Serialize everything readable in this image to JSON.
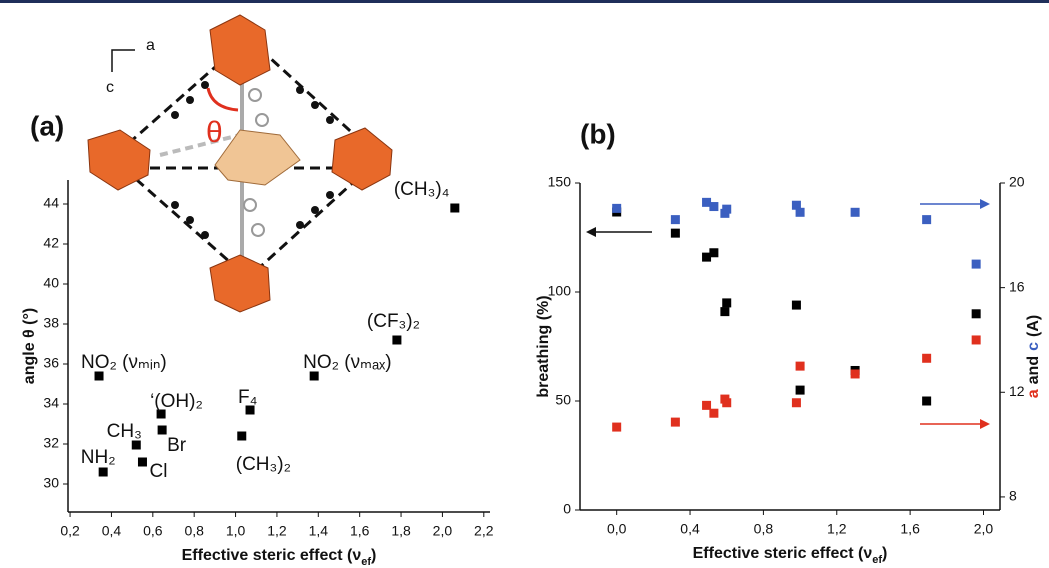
{
  "chart_data": [
    {
      "type": "scatter",
      "panel_label": "(a)",
      "structure_labels": {
        "a": "a",
        "c": "c",
        "theta": "θ"
      },
      "xlabel_parts": [
        "Effective steric effect (ν",
        "ef",
        ")"
      ],
      "ylabel": "angle θ (°)",
      "x": [
        0.36,
        0.52,
        0.55,
        0.645,
        0.64,
        0.34,
        1.03,
        1.07,
        1.38,
        1.78,
        2.06
      ],
      "values": [
        30.6,
        31.95,
        31.1,
        32.7,
        33.5,
        35.4,
        32.4,
        33.7,
        35.4,
        37.2,
        43.8
      ],
      "point_labels": [
        "NH₂",
        "CH₃",
        "Cl",
        "Br",
        "‘(OH)₂",
        "NO₂ (νₘᵢₙ)",
        "(CH₃)₂",
        "F₄",
        "NO₂ (νₘₐₓ)",
        "(CF₃)₂",
        "(CH₃)₄"
      ],
      "color": "#000000",
      "xlim": [
        0.19,
        2.23
      ],
      "ylim": [
        28.6,
        45.2
      ],
      "xticks": [
        {
          "value": 0.2,
          "label": "0,2"
        },
        {
          "value": 0.4,
          "label": "0,4"
        },
        {
          "value": 0.6,
          "label": "0,6"
        },
        {
          "value": 0.8,
          "label": "0,8"
        },
        {
          "value": 1.0,
          "label": "1,0"
        },
        {
          "value": 1.2,
          "label": "1,2"
        },
        {
          "value": 1.4,
          "label": "1,4"
        },
        {
          "value": 1.6,
          "label": "1,6"
        },
        {
          "value": 1.8,
          "label": "1,8"
        },
        {
          "value": 2.0,
          "label": "2,0"
        },
        {
          "value": 2.2,
          "label": "2,2"
        }
      ],
      "yticks": [
        30,
        32,
        34,
        36,
        38,
        40,
        42,
        44
      ]
    },
    {
      "type": "scatter",
      "panel_label": "(b)",
      "xlabel_parts": [
        "Effective steric effect (ν",
        "ef",
        ")"
      ],
      "ylabel": "breathing (%)",
      "y2label_parts": [
        "a",
        "and",
        "c",
        "(A)"
      ],
      "x": [
        0.0,
        0.32,
        0.49,
        0.53,
        0.59,
        0.6,
        0.98,
        1.0,
        1.3,
        1.69,
        1.96
      ],
      "series": [
        {
          "color": "#000000",
          "values": [
            136.7,
            127,
            116,
            118,
            91,
            95,
            94,
            55,
            64,
            50,
            90
          ]
        },
        {
          "color": "#3b5fc0",
          "axis": "y2",
          "values": [
            19.03,
            18.6,
            19.26,
            19.1,
            18.84,
            19.0,
            19.15,
            18.88,
            18.88,
            18.6,
            16.9
          ]
        },
        {
          "color": "#e0301e",
          "axis": "y2",
          "values": [
            10.67,
            10.86,
            11.5,
            11.2,
            11.74,
            11.6,
            11.6,
            13.0,
            12.7,
            13.3,
            14.0
          ]
        }
      ],
      "xlim": [
        -0.2,
        2.09
      ],
      "ylim": [
        0,
        150
      ],
      "y2lim": [
        7.5,
        20
      ],
      "xticks": [
        {
          "value": 0.0,
          "label": "0,0"
        },
        {
          "value": 0.4,
          "label": "0,4"
        },
        {
          "value": 0.8,
          "label": "0,8"
        },
        {
          "value": 1.2,
          "label": "1,2"
        },
        {
          "value": 1.6,
          "label": "1,6"
        },
        {
          "value": 2.0,
          "label": "2,0"
        }
      ],
      "yticks": [
        0,
        50,
        100,
        150
      ],
      "y2ticks": [
        8,
        12,
        16,
        20
      ]
    }
  ]
}
